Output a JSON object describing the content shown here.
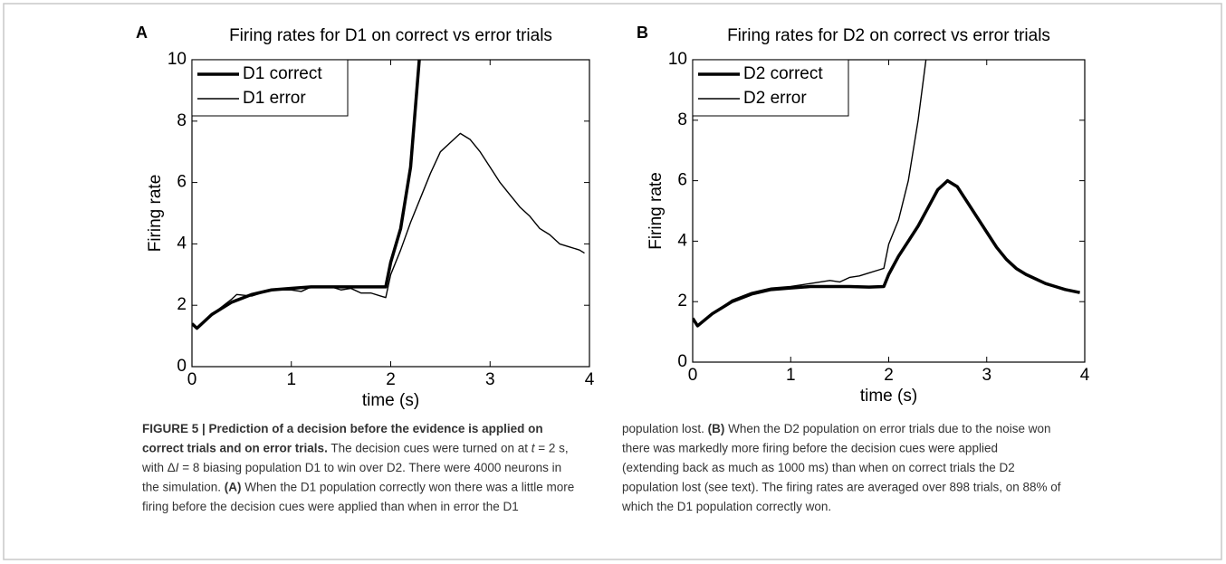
{
  "chart_data": [
    {
      "type": "line",
      "panel": "A",
      "title": "Firing rates for D1 on correct vs error trials",
      "xlabel": "time (s)",
      "ylabel": "Firing rate",
      "xlim": [
        0,
        4
      ],
      "xticks": [
        0,
        1,
        2,
        3,
        4
      ],
      "ylim": [
        0,
        10
      ],
      "yticks": [
        0,
        2,
        4,
        6,
        8,
        10
      ],
      "legend": "upper left",
      "series": [
        {
          "name": "D1 correct",
          "color": "#000000",
          "line_width": 3.5,
          "x": [
            0,
            0.05,
            0.2,
            0.4,
            0.6,
            0.8,
            1.0,
            1.2,
            1.4,
            1.6,
            1.8,
            1.95,
            2.0,
            2.1,
            2.2,
            2.25,
            2.3
          ],
          "values": [
            1.4,
            1.25,
            1.7,
            2.1,
            2.35,
            2.5,
            2.55,
            2.6,
            2.6,
            2.6,
            2.6,
            2.6,
            3.4,
            4.5,
            6.5,
            8.5,
            10.5
          ]
        },
        {
          "name": "D1 error",
          "color": "#000000",
          "line_width": 1.4,
          "x": [
            0,
            0.05,
            0.2,
            0.4,
            0.45,
            0.6,
            0.8,
            1.0,
            1.1,
            1.2,
            1.4,
            1.5,
            1.6,
            1.7,
            1.8,
            1.9,
            1.95,
            2.0,
            2.1,
            2.2,
            2.3,
            2.4,
            2.5,
            2.6,
            2.7,
            2.8,
            2.9,
            3.0,
            3.1,
            3.2,
            3.3,
            3.4,
            3.5,
            3.6,
            3.7,
            3.8,
            3.9,
            3.95
          ],
          "values": [
            1.4,
            1.25,
            1.7,
            2.2,
            2.35,
            2.3,
            2.5,
            2.5,
            2.45,
            2.6,
            2.6,
            2.5,
            2.55,
            2.4,
            2.4,
            2.3,
            2.25,
            3.0,
            3.8,
            4.7,
            5.5,
            6.3,
            7.0,
            7.3,
            7.6,
            7.4,
            7.0,
            6.5,
            6.0,
            5.6,
            5.2,
            4.9,
            4.5,
            4.3,
            4.0,
            3.9,
            3.8,
            3.7
          ]
        }
      ]
    },
    {
      "type": "line",
      "panel": "B",
      "title": "Firing rates for D2 on correct vs error trials",
      "xlabel": "time (s)",
      "ylabel": "Firing rate",
      "xlim": [
        0,
        4
      ],
      "xticks": [
        0,
        1,
        2,
        3,
        4
      ],
      "ylim": [
        0,
        10
      ],
      "yticks": [
        0,
        2,
        4,
        6,
        8,
        10
      ],
      "legend": "upper left",
      "series": [
        {
          "name": "D2 correct",
          "color": "#000000",
          "line_width": 3.5,
          "x": [
            0,
            0.05,
            0.2,
            0.4,
            0.6,
            0.8,
            1.0,
            1.2,
            1.4,
            1.6,
            1.8,
            1.95,
            2.0,
            2.1,
            2.2,
            2.3,
            2.4,
            2.5,
            2.6,
            2.7,
            2.8,
            2.9,
            3.0,
            3.1,
            3.2,
            3.3,
            3.4,
            3.5,
            3.6,
            3.7,
            3.8,
            3.95
          ],
          "values": [
            1.45,
            1.2,
            1.6,
            2.0,
            2.25,
            2.4,
            2.45,
            2.5,
            2.5,
            2.5,
            2.48,
            2.5,
            2.9,
            3.5,
            4.0,
            4.5,
            5.1,
            5.7,
            6.0,
            5.8,
            5.3,
            4.8,
            4.3,
            3.8,
            3.4,
            3.1,
            2.9,
            2.75,
            2.6,
            2.5,
            2.4,
            2.3
          ]
        },
        {
          "name": "D2 error",
          "color": "#000000",
          "line_width": 1.4,
          "x": [
            0,
            0.05,
            0.2,
            0.4,
            0.6,
            0.8,
            1.0,
            1.2,
            1.4,
            1.5,
            1.6,
            1.7,
            1.8,
            1.9,
            1.95,
            2.0,
            2.1,
            2.2,
            2.3,
            2.4
          ],
          "values": [
            1.45,
            1.2,
            1.6,
            2.05,
            2.3,
            2.45,
            2.5,
            2.6,
            2.7,
            2.65,
            2.8,
            2.85,
            2.95,
            3.05,
            3.1,
            3.9,
            4.7,
            6.0,
            8.0,
            10.5
          ]
        }
      ]
    }
  ],
  "caption": {
    "columns": [
      {
        "lines": [
          [
            {
              "text": "FIGURE 5 | Prediction of a decision before the evidence is applied on",
              "bold": true
            }
          ],
          [
            {
              "text": "correct trials and on error trials.",
              "bold": true
            },
            {
              "text": " The decision cues were turned on at "
            },
            {
              "text": "t",
              "italic": true
            },
            {
              "text": " = 2 s,"
            }
          ],
          [
            {
              "text": "with Δ"
            },
            {
              "text": "I",
              "italic": true
            },
            {
              "text": " = 8 biasing population D1 to win over D2. There were 4000 neurons in"
            }
          ],
          [
            {
              "text": "the simulation. "
            },
            {
              "text": "(A)",
              "bold": true
            },
            {
              "text": " When the D1 population correctly won there was a little more"
            }
          ],
          [
            {
              "text": "firing before the decision cues were applied than when in error the D1"
            }
          ]
        ]
      },
      {
        "lines": [
          [
            {
              "text": "population lost. "
            },
            {
              "text": "(B)",
              "bold": true
            },
            {
              "text": " When the D2 population on error trials due to the noise won"
            }
          ],
          [
            {
              "text": "there was markedly more firing before the decision cues were applied"
            }
          ],
          [
            {
              "text": "(extending back as much as 1000 ms) than when on correct trials the D2"
            }
          ],
          [
            {
              "text": "population lost (see text). The firing rates are averaged over 898 trials, on 88% of"
            }
          ],
          [
            {
              "text": "which the D1 population correctly won."
            }
          ]
        ]
      }
    ]
  }
}
